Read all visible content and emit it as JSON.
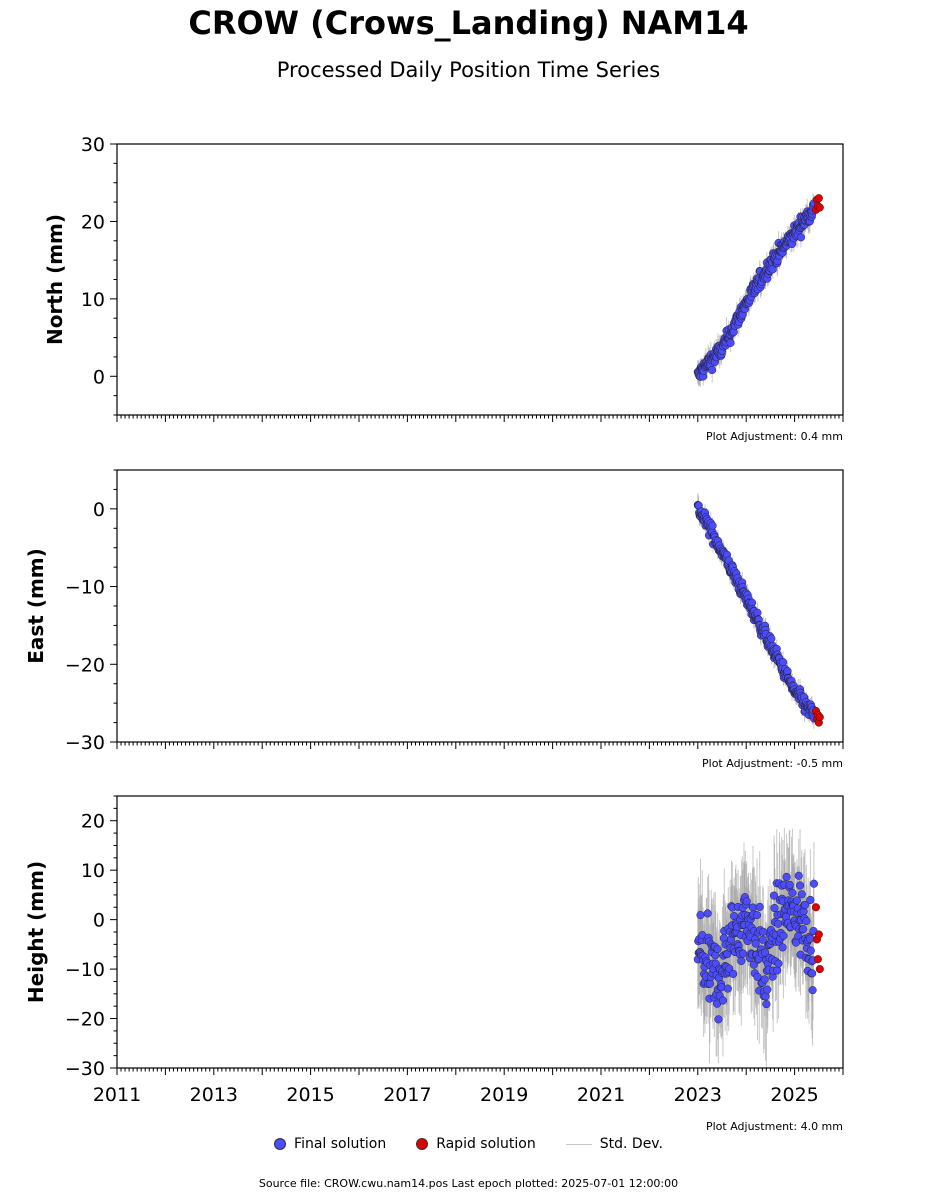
{
  "header": {
    "title": "CROW (Crows_Landing) NAM14",
    "subtitle": "Processed Daily Position Time Series"
  },
  "legend": {
    "final": "Final solution",
    "rapid": "Rapid solution",
    "stddev": "Std. Dev."
  },
  "colors": {
    "final": "#4b4bff",
    "rapid": "#e00000",
    "stddev": "#9a9a9a"
  },
  "footer": {
    "source": "Source file: CROW.cwu.nam14.pos  Last epoch plotted: 2025-07-01 12:00:00"
  },
  "chart_data": [
    {
      "type": "scatter",
      "ylabel": "North (mm)",
      "adjustment": "Plot Adjustment: 0.4 mm",
      "xlim": [
        2011,
        2026
      ],
      "ylim": [
        -5,
        30
      ],
      "yticks": [
        0,
        10,
        20,
        30
      ],
      "yticklabels": [
        "0",
        "10",
        "20",
        "30"
      ],
      "xticklabels": [],
      "series": [
        {
          "name": "Final solution",
          "x": [
            2023.0,
            2023.25,
            2023.5,
            2023.75,
            2024.0,
            2024.25,
            2024.5,
            2024.75,
            2025.0,
            2025.25,
            2025.4
          ],
          "y": [
            0.0,
            2.0,
            3.5,
            6.5,
            9.5,
            12.0,
            14.5,
            16.5,
            18.5,
            20.5,
            22.0
          ]
        },
        {
          "name": "Rapid solution",
          "x": [
            2025.42,
            2025.44,
            2025.46,
            2025.48,
            2025.5
          ],
          "y": [
            21.5,
            22.8,
            22.0,
            23.0,
            21.8
          ]
        }
      ],
      "noise": 0.8
    },
    {
      "type": "scatter",
      "ylabel": "East (mm)",
      "adjustment": "Plot Adjustment: -0.5 mm",
      "xlim": [
        2011,
        2026
      ],
      "ylim": [
        -30,
        5
      ],
      "yticks": [
        -30,
        -20,
        -10,
        0
      ],
      "yticklabels": [
        "−30",
        "−20",
        "−10",
        "0"
      ],
      "xticklabels": [],
      "series": [
        {
          "name": "Final solution",
          "x": [
            2023.0,
            2023.25,
            2023.5,
            2023.75,
            2024.0,
            2024.25,
            2024.5,
            2024.75,
            2025.0,
            2025.25,
            2025.4
          ],
          "y": [
            0.0,
            -2.5,
            -5.5,
            -8.5,
            -11.5,
            -14.5,
            -17.5,
            -20.5,
            -23.5,
            -25.5,
            -26.5
          ]
        },
        {
          "name": "Rapid solution",
          "x": [
            2025.42,
            2025.44,
            2025.46,
            2025.48,
            2025.5
          ],
          "y": [
            -26.0,
            -27.0,
            -26.5,
            -27.5,
            -26.8
          ]
        }
      ],
      "noise": 0.7
    },
    {
      "type": "scatter",
      "ylabel": "Height (mm)",
      "adjustment": "Plot Adjustment: 4.0 mm",
      "xlim": [
        2011,
        2026
      ],
      "ylim": [
        -30,
        25
      ],
      "yticks": [
        -30,
        -20,
        -10,
        0,
        10,
        20
      ],
      "yticklabels": [
        "−30",
        "−20",
        "−10",
        "0",
        "10",
        "20"
      ],
      "xticks": [
        2011,
        2013,
        2015,
        2017,
        2019,
        2021,
        2023,
        2025
      ],
      "xticklabels": [
        "2011",
        "2013",
        "2015",
        "2017",
        "2019",
        "2021",
        "2023",
        "2025"
      ],
      "series": [
        {
          "name": "Final solution",
          "x": [
            2023.0,
            2023.2,
            2023.4,
            2023.6,
            2023.8,
            2024.0,
            2024.2,
            2024.4,
            2024.6,
            2024.8,
            2025.0,
            2025.2,
            2025.4
          ],
          "y": [
            -5,
            -10,
            -12,
            -8,
            -2,
            0,
            -4,
            -12,
            -3,
            2,
            1,
            0,
            -5
          ]
        },
        {
          "name": "Rapid solution",
          "x": [
            2025.42,
            2025.44,
            2025.46,
            2025.48,
            2025.5
          ],
          "y": [
            2.5,
            -4.0,
            -8.0,
            -3.0,
            -10.0
          ]
        }
      ],
      "noise": 6.0
    }
  ]
}
